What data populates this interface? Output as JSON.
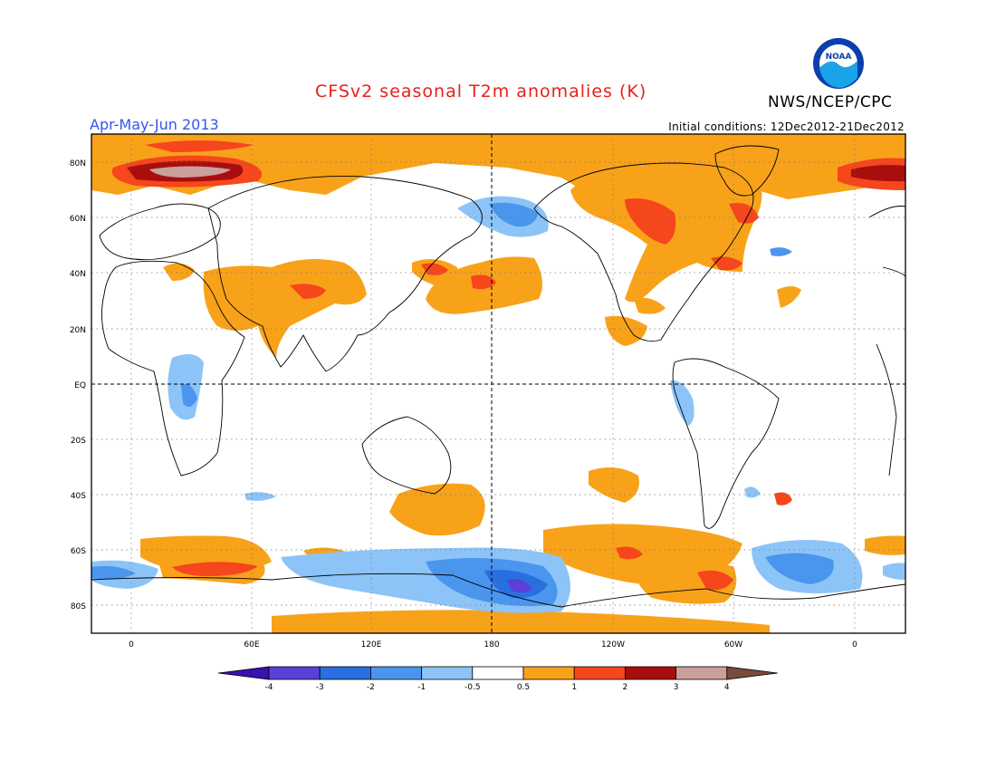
{
  "title": "CFSv2 seasonal T2m anomalies (K)",
  "agency": "NWS/NCEP/CPC",
  "logo_text": "NOAA",
  "period": "Apr-May-Jun 2013",
  "initial_conditions": "Initial conditions: 12Dec2012-21Dec2012",
  "lat_labels": [
    "80N",
    "60N",
    "40N",
    "20N",
    "EQ",
    "20S",
    "40S",
    "60S",
    "80S"
  ],
  "lon_labels": [
    "0",
    "60E",
    "120E",
    "180",
    "120W",
    "60W",
    "0"
  ],
  "colorbar": {
    "labels": [
      "-4",
      "-3",
      "-2",
      "-1",
      "-0.5",
      "0.5",
      "1",
      "2",
      "3",
      "4"
    ],
    "colors": [
      "#3a10b0",
      "#5a3fd8",
      "#2a6fe0",
      "#4a96ee",
      "#8cc4f8",
      "#ffffff",
      "#f8a21a",
      "#f5461c",
      "#a80e0e",
      "#c9a09a",
      "#7a4a3a"
    ]
  },
  "anomaly_colors": {
    "warm1": "#f8a21a",
    "warm2": "#f5461c",
    "warm3": "#a80e0e",
    "warm4": "#c9a09a",
    "cool1": "#8cc4f8",
    "cool2": "#4a96ee",
    "cool3": "#2a6fe0",
    "cool4": "#5a3fd8"
  }
}
